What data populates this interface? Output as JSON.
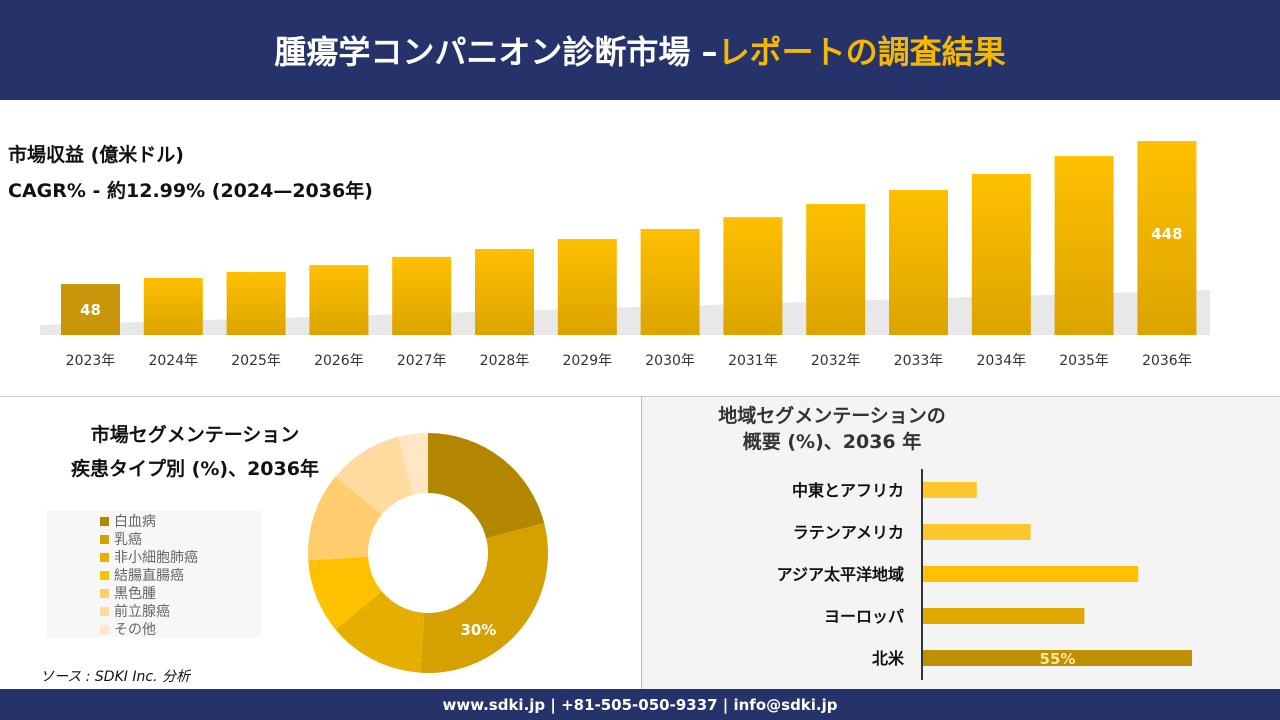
{
  "header": {
    "title_main": "腫瘍学コンパニオン診断市場 –",
    "title_accent": "レポートの調査結果"
  },
  "info": {
    "revenue_label": "市場収益 (億米ドル)",
    "cagr_label": "CAGR% - 約12.99% (2024—2036年)"
  },
  "chart_data": [
    {
      "type": "bar",
      "categories": [
        "2023年",
        "2024年",
        "2025年",
        "2026年",
        "2027年",
        "2028年",
        "2029年",
        "2030年",
        "2031年",
        "2032年",
        "2033年",
        "2034年",
        "2035年",
        "2036年"
      ],
      "values": [
        48,
        65,
        82,
        101,
        124,
        146,
        174,
        202,
        235,
        272,
        311,
        356,
        406,
        448
      ],
      "data_labels": {
        "0": "48",
        "13": "448"
      },
      "colors": {
        "first": "#c8960a",
        "main": "#f0b400",
        "light": "#ffc20e"
      }
    },
    {
      "type": "pie",
      "title": "市場セグメンテーション",
      "subtitle": "疾患タイプ別 (%)、2036年",
      "labels": [
        "白血病",
        "乳癌",
        "非小細胞肺癌",
        "結腸直腸癌",
        "黒色腫",
        "前立腺癌",
        "その他"
      ],
      "values": [
        21,
        30,
        13,
        10,
        12,
        10,
        4
      ],
      "colors": [
        "#b38600",
        "#d4a100",
        "#e6ae00",
        "#ffc000",
        "#ffcd6e",
        "#ffdba0",
        "#ffe6c4"
      ],
      "data_label": {
        "index": 1,
        "text": "30%"
      }
    },
    {
      "type": "bar",
      "orientation": "horizontal",
      "title": "地域セグメンテーションの",
      "subtitle": "概要 (%)、2036 年",
      "categories": [
        "中東とアフリカ",
        "ラテンアメリカ",
        "アジア太平洋地域",
        "ヨーロッパ",
        "北米"
      ],
      "values": [
        11,
        22,
        44,
        33,
        55
      ],
      "colors": [
        "#ffc72c",
        "#ffc72c",
        "#ffc000",
        "#e0a800",
        "#bf8f00"
      ],
      "data_label": {
        "index": 4,
        "text": "55%"
      }
    }
  ],
  "source": "ソース : SDKI Inc. 分析",
  "footer": "www.sdki.jp | +81-505-050-9337 | info@sdki.jp"
}
